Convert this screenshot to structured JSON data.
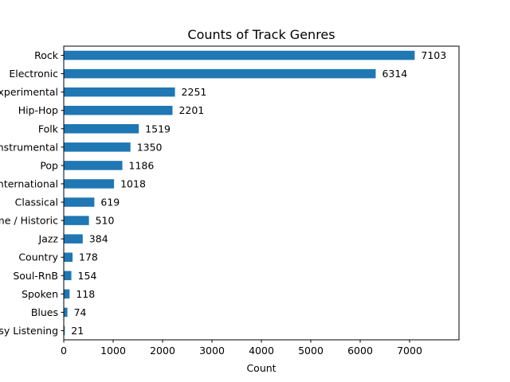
{
  "chart_data": {
    "type": "bar",
    "orientation": "horizontal",
    "title": "Counts of Track Genres",
    "xlabel": "Count",
    "ylabel": "",
    "xlim": [
      0,
      8000
    ],
    "xticks": [
      0,
      1000,
      2000,
      3000,
      4000,
      5000,
      6000,
      7000
    ],
    "grid": false,
    "bar_color": "#1f77b4",
    "categories": [
      "Rock",
      "Electronic",
      "Experimental",
      "Hip-Hop",
      "Folk",
      "Instrumental",
      "Pop",
      "International",
      "Classical",
      "Old-Time / Historic",
      "Jazz",
      "Country",
      "Soul-RnB",
      "Spoken",
      "Blues",
      "Easy Listening"
    ],
    "values": [
      7103,
      6314,
      2251,
      2201,
      1519,
      1350,
      1186,
      1018,
      619,
      510,
      384,
      178,
      154,
      118,
      74,
      21
    ]
  }
}
